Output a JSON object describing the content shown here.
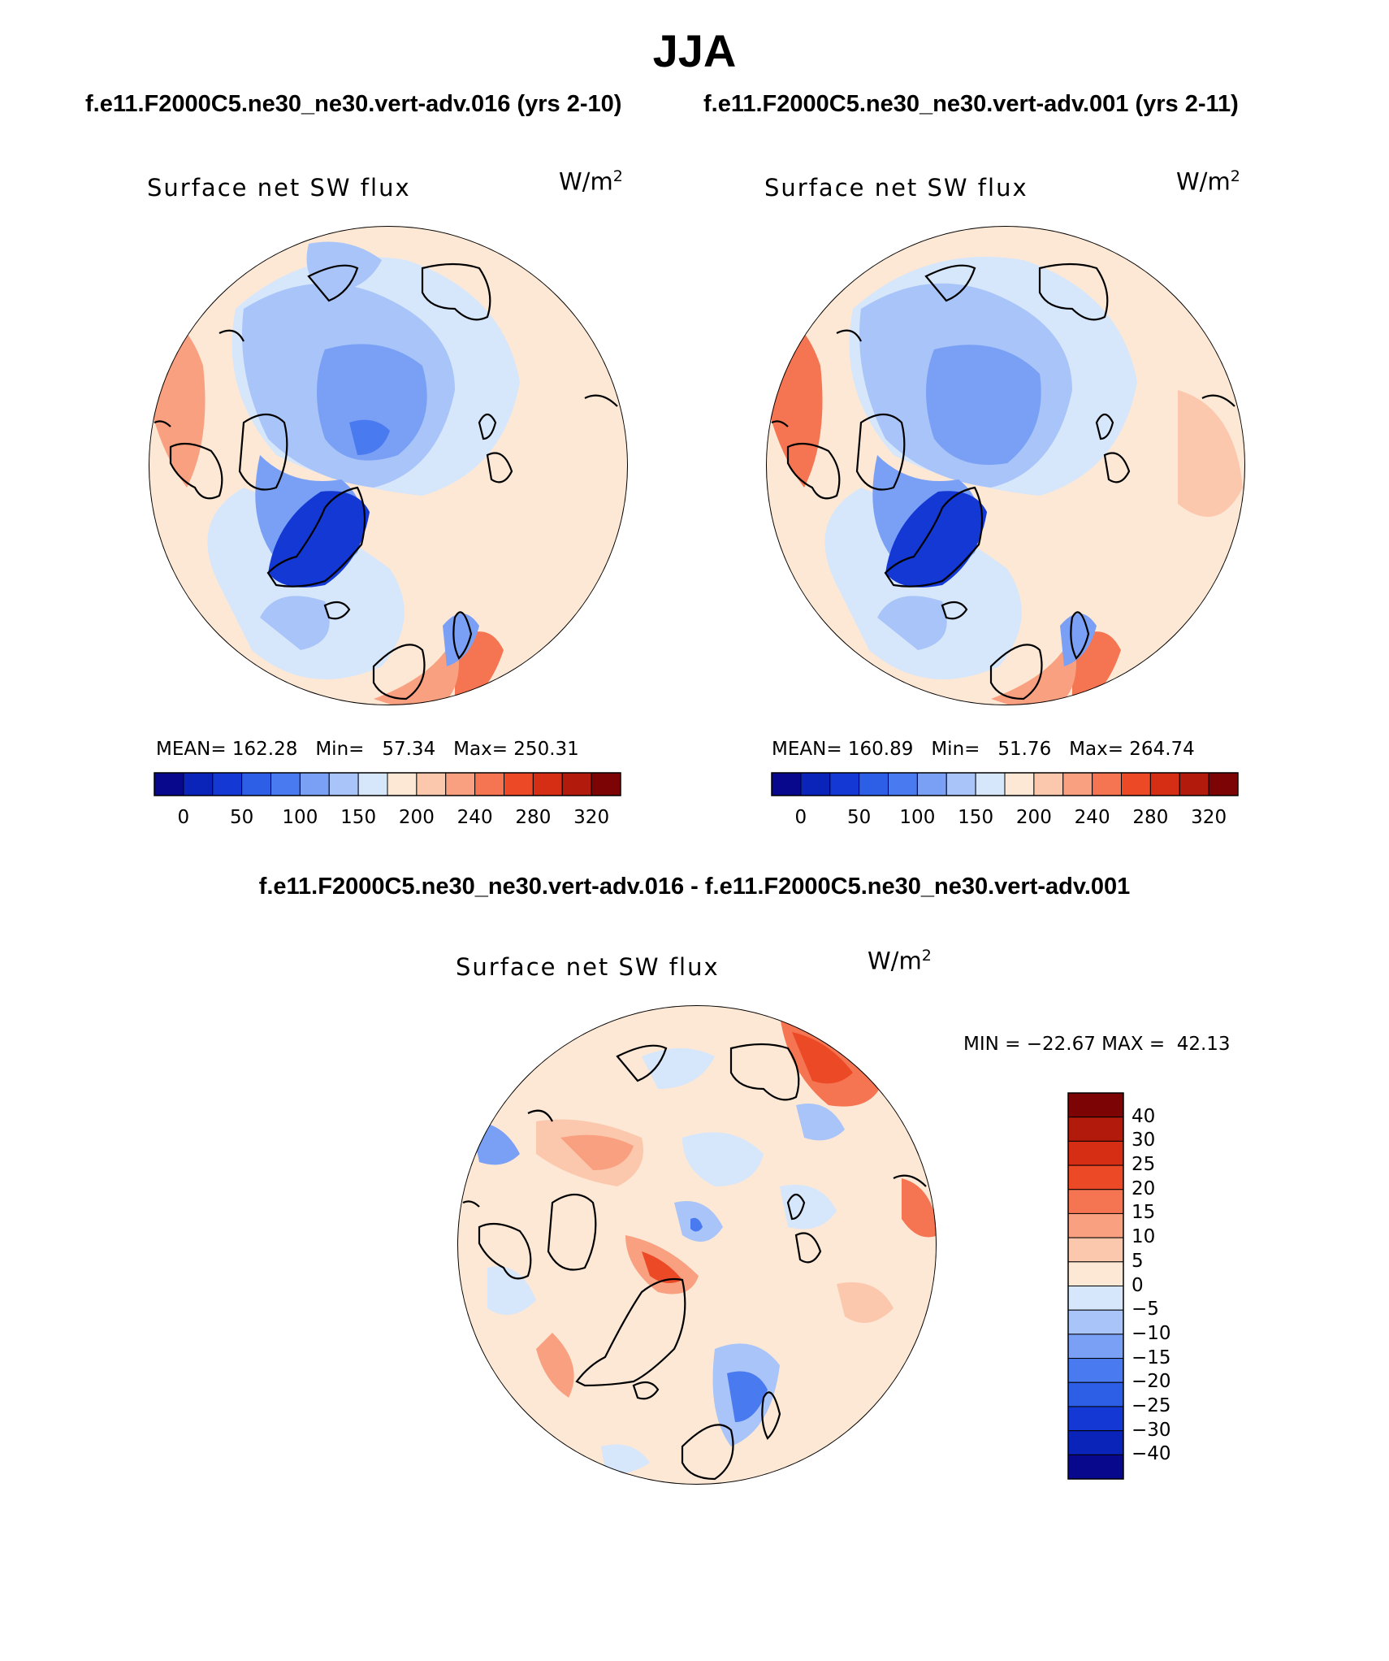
{
  "title": "JJA",
  "left_case": "f.e11.F2000C5.ne30_ne30.vert-adv.016 (yrs 2-10)",
  "right_case": "f.e11.F2000C5.ne30_ne30.vert-adv.001 (yrs 2-11)",
  "diff_title": "f.e11.F2000C5.ne30_ne30.vert-adv.016 - f.e11.F2000C5.ne30_ne30.vert-adv.001",
  "panels": [
    {
      "title": "Surface net SW flux",
      "units": "W/m",
      "units_sup": "2",
      "stats": {
        "mean_label": "MEAN=",
        "mean": "162.28",
        "min_label": "Min=",
        "min": "57.34",
        "max_label": "Max=",
        "max": "250.31"
      }
    },
    {
      "title": "Surface net SW flux",
      "units": "W/m",
      "units_sup": "2",
      "stats": {
        "mean_label": "MEAN=",
        "mean": "160.89",
        "min_label": "Min=",
        "min": "51.76",
        "max_label": "Max=",
        "max": "264.74"
      }
    },
    {
      "title": "Surface net SW flux",
      "units": "W/m",
      "units_sup": "2",
      "stats": {
        "min_label": "MIN =",
        "min": "−22.67",
        "max_label": "MAX =",
        "max": "42.13"
      }
    }
  ],
  "abs_colorbar": {
    "tick_labels": [
      "0",
      "50",
      "100",
      "150",
      "200",
      "240",
      "280",
      "320"
    ],
    "colors": [
      "#08088c",
      "#0a23b8",
      "#1438d4",
      "#2d5ee6",
      "#4a7af0",
      "#7aa0f5",
      "#a8c4f8",
      "#d6e6fb",
      "#fde8d6",
      "#fbc8ad",
      "#f8a080",
      "#f57552",
      "#ec4a26",
      "#d52e14",
      "#b21b0c",
      "#7d0404"
    ]
  },
  "diff_colorbar": {
    "tick_labels": [
      "40",
      "30",
      "25",
      "20",
      "15",
      "10",
      "5",
      "0",
      "−5",
      "−10",
      "−15",
      "−20",
      "−25",
      "−30",
      "−40"
    ],
    "colors": [
      "#7d0404",
      "#b21b0c",
      "#d52e14",
      "#ec4a26",
      "#f57552",
      "#f8a080",
      "#fbc8ad",
      "#fde8d6",
      "#d6e6fb",
      "#a8c4f8",
      "#7aa0f5",
      "#4a7af0",
      "#2d5ee6",
      "#1438d4",
      "#0a23b8",
      "#08088c"
    ]
  },
  "map_colors": {
    "ocean_light": "#d6e6fb",
    "ice_blue": "#a8c4f8",
    "mid_blue": "#7aa0f5",
    "deep_blue": "#2d5ee6",
    "greenland": "#1438d4",
    "land_peach": "#fde8d6",
    "land_salmon": "#fbc8ad",
    "land_orange": "#f8a080",
    "land_red": "#f57552",
    "coast": "#000000"
  }
}
